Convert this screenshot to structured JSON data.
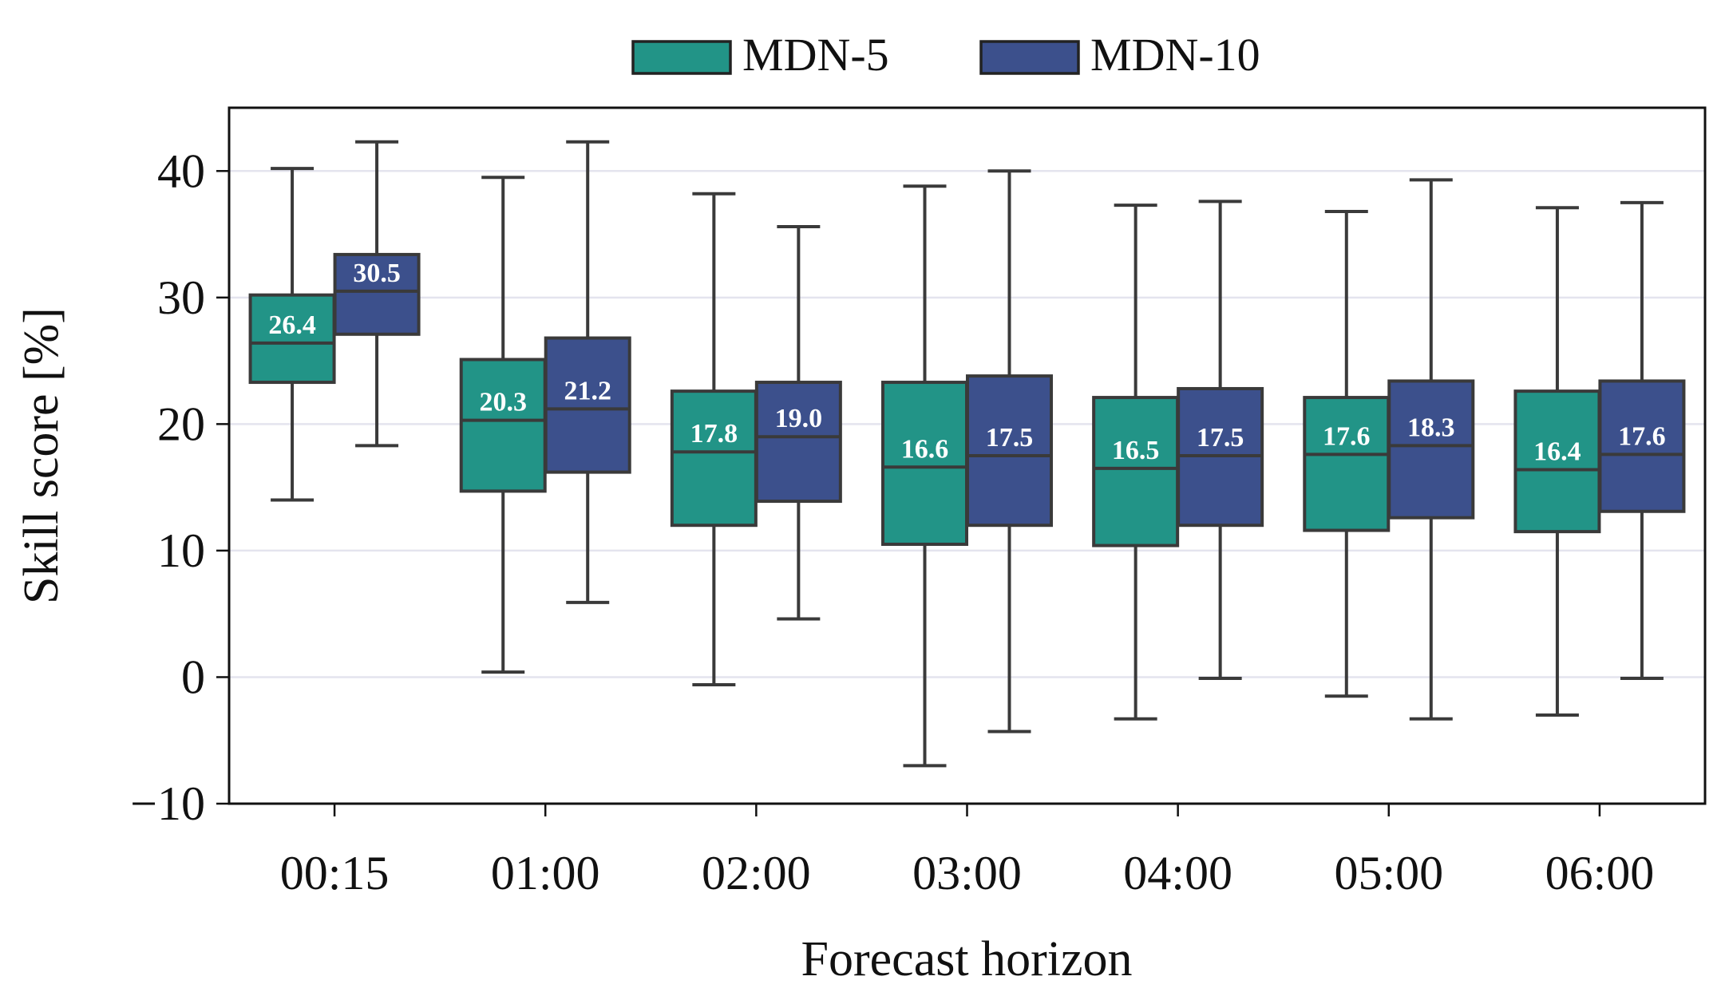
{
  "chart_data": {
    "type": "box",
    "xlabel": "Forecast horizon",
    "ylabel": "Skill score [%]",
    "ylim": [
      -10,
      45
    ],
    "yticks": [
      -10,
      0,
      10,
      20,
      30,
      40
    ],
    "ytick_labels": [
      "−10",
      "0",
      "10",
      "20",
      "30",
      "40"
    ],
    "categories": [
      "00:15",
      "01:00",
      "02:00",
      "03:00",
      "04:00",
      "05:00",
      "06:00"
    ],
    "grid": "horizontal",
    "legend_position": "top-center",
    "series": [
      {
        "name": "MDN-5",
        "color": "#229487",
        "median_labels": [
          "26.4",
          "20.3",
          "17.8",
          "16.6",
          "16.5",
          "17.6",
          "16.4"
        ],
        "boxes": [
          {
            "whisker_low": 14.0,
            "q1": 23.3,
            "median": 26.4,
            "q3": 30.2,
            "whisker_high": 40.2
          },
          {
            "whisker_low": 0.4,
            "q1": 14.7,
            "median": 20.3,
            "q3": 25.1,
            "whisker_high": 39.5
          },
          {
            "whisker_low": -0.6,
            "q1": 12.0,
            "median": 17.8,
            "q3": 22.6,
            "whisker_high": 38.2
          },
          {
            "whisker_low": -7.0,
            "q1": 10.5,
            "median": 16.6,
            "q3": 23.3,
            "whisker_high": 38.8
          },
          {
            "whisker_low": -3.3,
            "q1": 10.4,
            "median": 16.5,
            "q3": 22.1,
            "whisker_high": 37.3
          },
          {
            "whisker_low": -1.5,
            "q1": 11.6,
            "median": 17.6,
            "q3": 22.1,
            "whisker_high": 36.8
          },
          {
            "whisker_low": -3.0,
            "q1": 11.5,
            "median": 16.4,
            "q3": 22.6,
            "whisker_high": 37.1
          }
        ]
      },
      {
        "name": "MDN-10",
        "color": "#3c508c",
        "median_labels": [
          "30.5",
          "21.2",
          "19.0",
          "17.5",
          "17.5",
          "18.3",
          "17.6"
        ],
        "boxes": [
          {
            "whisker_low": 18.3,
            "q1": 27.1,
            "median": 30.5,
            "q3": 33.4,
            "whisker_high": 42.3
          },
          {
            "whisker_low": 5.9,
            "q1": 16.2,
            "median": 21.2,
            "q3": 26.8,
            "whisker_high": 42.3
          },
          {
            "whisker_low": 4.6,
            "q1": 13.9,
            "median": 19.0,
            "q3": 23.3,
            "whisker_high": 35.6
          },
          {
            "whisker_low": -4.3,
            "q1": 12.0,
            "median": 17.5,
            "q3": 23.8,
            "whisker_high": 40.0
          },
          {
            "whisker_low": -0.1,
            "q1": 12.0,
            "median": 17.5,
            "q3": 22.8,
            "whisker_high": 37.6
          },
          {
            "whisker_low": -3.3,
            "q1": 12.6,
            "median": 18.3,
            "q3": 23.4,
            "whisker_high": 39.3
          },
          {
            "whisker_low": -0.1,
            "q1": 13.1,
            "median": 17.6,
            "q3": 23.4,
            "whisker_high": 37.5
          }
        ]
      }
    ]
  }
}
